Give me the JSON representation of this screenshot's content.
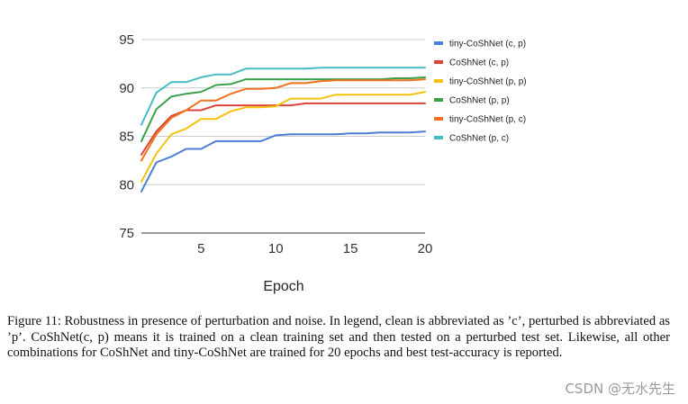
{
  "chart_data": {
    "type": "line",
    "title": "",
    "xlabel": "Epoch",
    "ylabel": "",
    "xlim": [
      1,
      20
    ],
    "ylim": [
      75,
      95
    ],
    "x_ticks": [
      5,
      10,
      15,
      20
    ],
    "y_ticks": [
      75,
      80,
      85,
      90,
      95
    ],
    "grid": "horizontal",
    "legend_position": "right",
    "x": [
      1,
      2,
      3,
      4,
      5,
      6,
      7,
      8,
      9,
      10,
      11,
      12,
      13,
      14,
      15,
      16,
      17,
      18,
      19,
      20
    ],
    "series": [
      {
        "name": "tiny-CoShNet (c, p)",
        "color": "#4a7fd4",
        "values": [
          79.3,
          82.3,
          82.9,
          83.7,
          83.7,
          84.5,
          84.5,
          84.5,
          84.5,
          85.1,
          85.2,
          85.2,
          85.2,
          85.2,
          85.3,
          85.3,
          85.4,
          85.4,
          85.4,
          85.5
        ]
      },
      {
        "name": "CoShNet (c, p)",
        "color": "#db4437",
        "values": [
          83.1,
          85.5,
          87.1,
          87.7,
          87.7,
          88.2,
          88.2,
          88.2,
          88.2,
          88.2,
          88.2,
          88.4,
          88.4,
          88.4,
          88.4,
          88.4,
          88.4,
          88.4,
          88.4,
          88.4
        ]
      },
      {
        "name": "tiny-CoShNet (p, p)",
        "color": "#f4c20d",
        "values": [
          80.3,
          83.2,
          85.2,
          85.8,
          86.8,
          86.8,
          87.6,
          88.0,
          88.0,
          88.1,
          88.9,
          88.9,
          88.9,
          89.3,
          89.3,
          89.3,
          89.3,
          89.3,
          89.3,
          89.6
        ]
      },
      {
        "name": "CoShNet (p, p)",
        "color": "#3aa14a",
        "values": [
          84.5,
          87.8,
          89.1,
          89.4,
          89.6,
          90.3,
          90.4,
          90.9,
          90.9,
          90.9,
          90.9,
          90.9,
          90.9,
          90.9,
          90.9,
          90.9,
          90.9,
          91.0,
          91.0,
          91.1
        ]
      },
      {
        "name": "tiny-CoShNet (p, c)",
        "color": "#f0711e",
        "values": [
          82.5,
          85.2,
          86.9,
          87.7,
          88.7,
          88.7,
          89.4,
          89.9,
          89.9,
          90.0,
          90.5,
          90.5,
          90.7,
          90.8,
          90.8,
          90.8,
          90.8,
          90.8,
          90.8,
          90.9
        ]
      },
      {
        "name": "CoShNet (p, c)",
        "color": "#46bdc6",
        "values": [
          86.2,
          89.5,
          90.6,
          90.6,
          91.1,
          91.4,
          91.4,
          92.0,
          92.0,
          92.0,
          92.0,
          92.0,
          92.1,
          92.1,
          92.1,
          92.1,
          92.1,
          92.1,
          92.1,
          92.1
        ]
      }
    ]
  },
  "caption": "Figure 11: Robustness in presence of perturbation and noise. In legend, clean is abbreviated as ’c’, perturbed is abbreviated as ’p’. CoShNet(c, p) means it is trained on a clean training set and then tested on a perturbed test set. Likewise, all other combinations for CoShNet and tiny-CoShNet are trained for 20 epochs and best test-accuracy is reported.",
  "watermark": "CSDN @无水先生"
}
